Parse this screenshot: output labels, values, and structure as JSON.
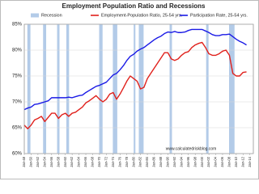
{
  "chart_data": {
    "type": "line",
    "title": "Employment Population Ratio and Recessions",
    "watermark": "www.calculatedriskblog.com",
    "recessions": {
      "name": "Recession",
      "color": "#b3cbe8",
      "periods": [
        [
          1948.9,
          1949.8
        ],
        [
          1953.5,
          1954.4
        ],
        [
          1957.6,
          1958.3
        ],
        [
          1960.3,
          1961.1
        ],
        [
          1969.9,
          1970.9
        ],
        [
          1973.9,
          1975.2
        ],
        [
          1980.0,
          1980.5
        ],
        [
          1981.5,
          1982.9
        ],
        [
          1990.5,
          1991.2
        ],
        [
          2001.2,
          2001.9
        ],
        [
          2007.9,
          2009.5
        ]
      ]
    },
    "x": [
      1948,
      1949,
      1950,
      1951,
      1952,
      1953,
      1954,
      1955,
      1956,
      1957,
      1958,
      1959,
      1960,
      1961,
      1962,
      1963,
      1964,
      1965,
      1966,
      1967,
      1968,
      1969,
      1970,
      1971,
      1972,
      1973,
      1974,
      1975,
      1976,
      1977,
      1978,
      1979,
      1980,
      1981,
      1982,
      1983,
      1984,
      1985,
      1986,
      1987,
      1988,
      1989,
      1990,
      1991,
      1992,
      1993,
      1994,
      1995,
      1996,
      1997,
      1998,
      1999,
      2000,
      2001,
      2002,
      2003,
      2004,
      2005,
      2006,
      2007,
      2008,
      2009,
      2010,
      2011,
      2012,
      2013
    ],
    "series": [
      {
        "name": "Employment-Population Ratio, 25-54 yrs.",
        "color": "#e0201b",
        "values": [
          65.5,
          64.8,
          65.5,
          66.5,
          66.8,
          67.2,
          66.2,
          67,
          67.8,
          67.8,
          66.8,
          67.5,
          67.8,
          67.2,
          67.8,
          68,
          68.5,
          69,
          69.8,
          70.2,
          70.7,
          71.2,
          70.5,
          70,
          70.5,
          71.5,
          71.8,
          70.5,
          71.5,
          72.7,
          74,
          75,
          74.5,
          74,
          72.5,
          72.8,
          74.5,
          75.5,
          76.5,
          77.5,
          78.5,
          79.5,
          79.5,
          78.3,
          78,
          78.3,
          79,
          79.5,
          79.7,
          80.5,
          81,
          81.3,
          81.5,
          80.5,
          79.3,
          79,
          79,
          79.3,
          79.8,
          80,
          79,
          75.5,
          75,
          75,
          75.7,
          75.8
        ]
      },
      {
        "name": "Participation Rate, 25-54 yrs.",
        "color": "#1a1ae6",
        "values": [
          68.5,
          68.8,
          69,
          69.5,
          69.6,
          69.8,
          70,
          70.2,
          70.8,
          70.8,
          70.8,
          70.8,
          70.8,
          70.9,
          70.8,
          71,
          71.2,
          71.3,
          71.8,
          72.2,
          72.6,
          73,
          73.2,
          73.5,
          73.8,
          74.5,
          75.2,
          75.5,
          76.2,
          77,
          78,
          78.8,
          79.2,
          79.8,
          80.2,
          80.5,
          81,
          81.5,
          82,
          82.4,
          82.7,
          83.2,
          83.5,
          83.4,
          83.6,
          83.4,
          83.4,
          83.5,
          83.8,
          84,
          84,
          84,
          84,
          83.7,
          83.4,
          83,
          82.8,
          82.8,
          83,
          83,
          83.1,
          82.6,
          82.1,
          81.7,
          81.4,
          81
        ]
      }
    ],
    "xlim": [
      1948,
      2015
    ],
    "xticks": [
      {
        "value": 1948,
        "label": "Jan-48"
      },
      {
        "value": 1950,
        "label": "Jan-50"
      },
      {
        "value": 1952,
        "label": "Jan-52"
      },
      {
        "value": 1954,
        "label": "Jan-54"
      },
      {
        "value": 1956,
        "label": "Jan-56"
      },
      {
        "value": 1958,
        "label": "Jan-58"
      },
      {
        "value": 1960,
        "label": "Jan-60"
      },
      {
        "value": 1962,
        "label": "Jan-62"
      },
      {
        "value": 1964,
        "label": "Jan-64"
      },
      {
        "value": 1966,
        "label": "Jan-66"
      },
      {
        "value": 1968,
        "label": "Jan-68"
      },
      {
        "value": 1970,
        "label": "Jan-70"
      },
      {
        "value": 1972,
        "label": "Jan-72"
      },
      {
        "value": 1974,
        "label": "Jan-74"
      },
      {
        "value": 1976,
        "label": "Jan-76"
      },
      {
        "value": 1978,
        "label": "Jan-78"
      },
      {
        "value": 1980,
        "label": "Jan-80"
      },
      {
        "value": 1982,
        "label": "Jan-82"
      },
      {
        "value": 1984,
        "label": "Jan-84"
      },
      {
        "value": 1986,
        "label": "Jan-86"
      },
      {
        "value": 1988,
        "label": "Jan-88"
      },
      {
        "value": 1990,
        "label": "Jan-90"
      },
      {
        "value": 1992,
        "label": "Jan-92"
      },
      {
        "value": 1994,
        "label": "Jan-94"
      },
      {
        "value": 1996,
        "label": "Jan-96"
      },
      {
        "value": 1998,
        "label": "Jan-98"
      },
      {
        "value": 2000,
        "label": "Jan-00"
      },
      {
        "value": 2002,
        "label": "Jan-02"
      },
      {
        "value": 2004,
        "label": "Jan-04"
      },
      {
        "value": 2006,
        "label": "Jan-06"
      },
      {
        "value": 2008,
        "label": "Jan-08"
      },
      {
        "value": 2010,
        "label": "Jan-10"
      },
      {
        "value": 2012,
        "label": "Jan-12"
      },
      {
        "value": 2014,
        "label": "Jan-14"
      }
    ],
    "ylim": [
      60,
      85
    ],
    "yticks": [
      {
        "value": 60,
        "label": "60%"
      },
      {
        "value": 65,
        "label": "65%"
      },
      {
        "value": 70,
        "label": "70%"
      },
      {
        "value": 75,
        "label": "75%"
      },
      {
        "value": 80,
        "label": "80%"
      },
      {
        "value": 85,
        "label": "85%"
      }
    ],
    "grid": true
  }
}
